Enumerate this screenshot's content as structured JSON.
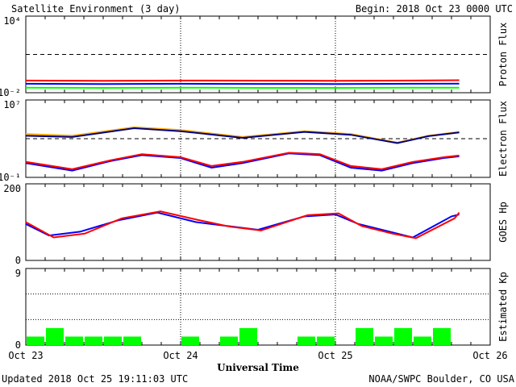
{
  "header": {
    "title": "Satellite Environment (3 day)",
    "begin": "Begin:  2018 Oct 23 0000 UTC"
  },
  "footer": {
    "updated": "Updated 2018 Oct 25 19:11:03 UTC",
    "credit": "NOAA/SWPC Boulder, CO USA",
    "xlabel": "Universal Time"
  },
  "colors": {
    "red": "#ff0000",
    "blue": "#0000ff",
    "green": "#00ff00",
    "orange": "#ffaa00",
    "navy": "#000080"
  },
  "chart_data": [
    {
      "type": "line",
      "ylabel": "Proton Flux",
      "yscale": "log",
      "ylim": [
        0.01,
        10000
      ],
      "ytick_labels": [
        "10⁴",
        "10⁻²"
      ],
      "threshold": 10,
      "x_unit": "day since 2018 Oct 23 00 UTC",
      "xlim": [
        0,
        3
      ],
      "series": [
        {
          "color": "red",
          "x": [
            0,
            0.5,
            1,
            1.5,
            2,
            2.5,
            2.8
          ],
          "y": [
            0.09,
            0.085,
            0.09,
            0.088,
            0.086,
            0.09,
            0.095
          ]
        },
        {
          "color": "blue",
          "x": [
            0,
            0.5,
            1,
            1.5,
            2,
            2.5,
            2.8
          ],
          "y": [
            0.05,
            0.048,
            0.05,
            0.049,
            0.048,
            0.05,
            0.052
          ]
        },
        {
          "color": "green",
          "x": [
            0,
            0.5,
            1,
            1.5,
            2,
            2.5,
            2.8
          ],
          "y": [
            0.025,
            0.024,
            0.025,
            0.024,
            0.024,
            0.025,
            0.025
          ]
        }
      ]
    },
    {
      "type": "line",
      "ylabel": "Electron Flux",
      "yscale": "log",
      "ylim": [
        0.1,
        10000000
      ],
      "ytick_labels": [
        "10⁷",
        "10⁻¹"
      ],
      "threshold": 1000,
      "series": [
        {
          "color": "orange",
          "x": [
            0,
            0.3,
            0.7,
            1.0,
            1.4,
            1.8,
            2.1,
            2.4,
            2.6,
            2.8
          ],
          "y": [
            3000,
            2000,
            15000,
            8000,
            1500,
            6000,
            3000,
            400,
            2000,
            5000
          ]
        },
        {
          "color": "navy",
          "x": [
            0,
            0.3,
            0.7,
            1.0,
            1.4,
            1.8,
            2.1,
            2.4,
            2.6,
            2.8
          ],
          "y": [
            2000,
            1500,
            12000,
            6000,
            1200,
            5000,
            2500,
            350,
            1800,
            4500
          ]
        },
        {
          "color": "blue",
          "x": [
            0,
            0.3,
            0.55,
            0.75,
            1.0,
            1.2,
            1.4,
            1.7,
            1.9,
            2.1,
            2.3,
            2.5,
            2.7,
            2.8
          ],
          "y": [
            3,
            0.5,
            5,
            20,
            10,
            1,
            3,
            30,
            20,
            1,
            0.5,
            3,
            10,
            15
          ]
        },
        {
          "color": "red",
          "x": [
            0,
            0.3,
            0.55,
            0.75,
            1.0,
            1.2,
            1.4,
            1.7,
            1.9,
            2.1,
            2.3,
            2.5,
            2.7,
            2.8
          ],
          "y": [
            4,
            0.7,
            6,
            25,
            12,
            1.5,
            4,
            35,
            25,
            1.5,
            0.7,
            4,
            12,
            18
          ]
        }
      ]
    },
    {
      "type": "line",
      "ylabel": "GOES Hp",
      "ylim": [
        0,
        200
      ],
      "ytick_labels": [
        "200",
        "0"
      ],
      "series": [
        {
          "color": "blue",
          "x": [
            0,
            0.15,
            0.35,
            0.6,
            0.85,
            1.1,
            1.3,
            1.5,
            1.8,
            2.0,
            2.15,
            2.35,
            2.5,
            2.75,
            2.8
          ],
          "y": [
            95,
            65,
            75,
            105,
            125,
            100,
            90,
            80,
            115,
            120,
            95,
            75,
            60,
            115,
            120
          ]
        },
        {
          "color": "red",
          "x": [
            0,
            0.18,
            0.38,
            0.62,
            0.87,
            1.12,
            1.32,
            1.52,
            1.82,
            2.02,
            2.17,
            2.37,
            2.52,
            2.77,
            2.8
          ],
          "y": [
            100,
            60,
            70,
            110,
            128,
            105,
            88,
            78,
            118,
            123,
            90,
            70,
            58,
            110,
            125
          ]
        }
      ]
    },
    {
      "type": "bar",
      "ylabel": "Estimated Kp",
      "ylim": [
        0,
        9
      ],
      "ytick_labels": [
        "9",
        "0"
      ],
      "bar_width_hours": 3,
      "values": [
        1,
        2,
        1,
        1,
        1,
        1,
        0,
        0,
        1,
        0,
        1,
        2,
        0,
        0,
        1,
        1,
        0,
        2,
        1,
        2,
        1,
        2
      ],
      "color": "green"
    }
  ],
  "xaxis": {
    "ticks": [
      "Oct 23",
      "Oct 24",
      "Oct 25",
      "Oct 26"
    ],
    "xlim_days": [
      0,
      3
    ]
  }
}
